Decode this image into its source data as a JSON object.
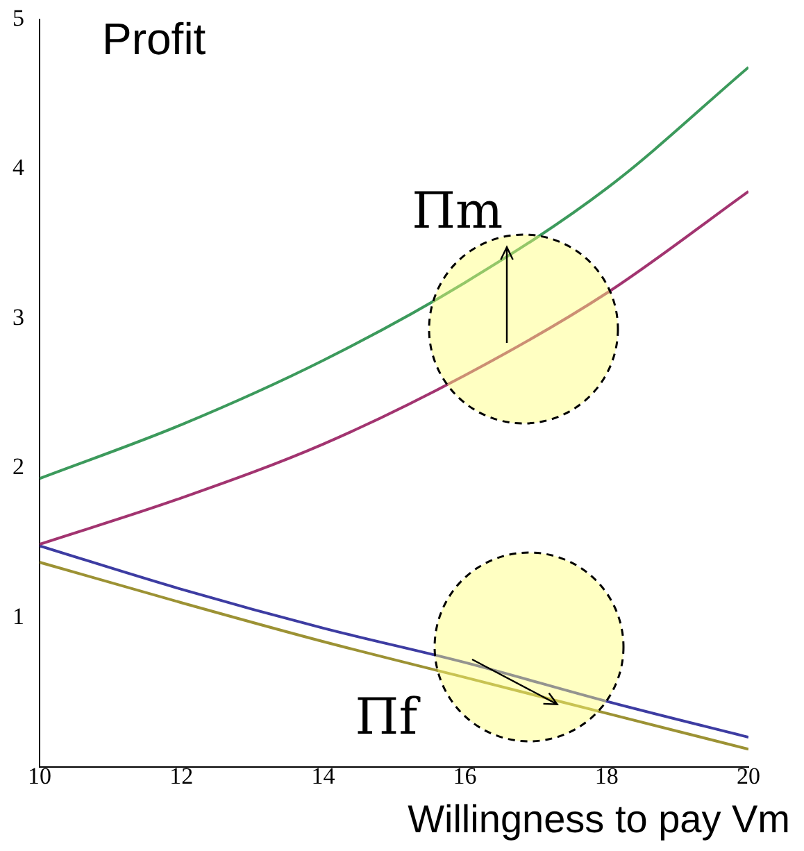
{
  "chart_data": {
    "type": "line",
    "ylabel": "Profit",
    "xlabel": "Willingness to pay Vm",
    "x": [
      10,
      12,
      14,
      16,
      18,
      20
    ],
    "series": [
      {
        "color": "#3c9a5c",
        "values": [
          1.93,
          2.29,
          2.72,
          3.24,
          3.87,
          4.68
        ]
      },
      {
        "color": "#a23470",
        "values": [
          1.49,
          1.8,
          2.16,
          2.62,
          3.17,
          3.85
        ]
      },
      {
        "color": "#3d3ca2",
        "values": [
          1.48,
          1.19,
          0.93,
          0.7,
          0.44,
          0.2
        ]
      },
      {
        "color": "#9c9234",
        "values": [
          1.37,
          1.1,
          0.84,
          0.6,
          0.36,
          0.12
        ]
      }
    ],
    "xlim": [
      10,
      20
    ],
    "xticks": [
      10,
      12,
      14,
      16,
      18,
      20
    ],
    "ylim": [
      0,
      5
    ],
    "yticks": [
      1,
      2,
      3,
      4,
      5
    ],
    "annotations": [
      {
        "text": "Πm",
        "x": 16.6,
        "y": 3.48
      },
      {
        "text": "Πf",
        "x": 17.3,
        "y": 0.42
      }
    ],
    "grid": false,
    "legend": false,
    "marker": "none",
    "line_style": "solid"
  }
}
